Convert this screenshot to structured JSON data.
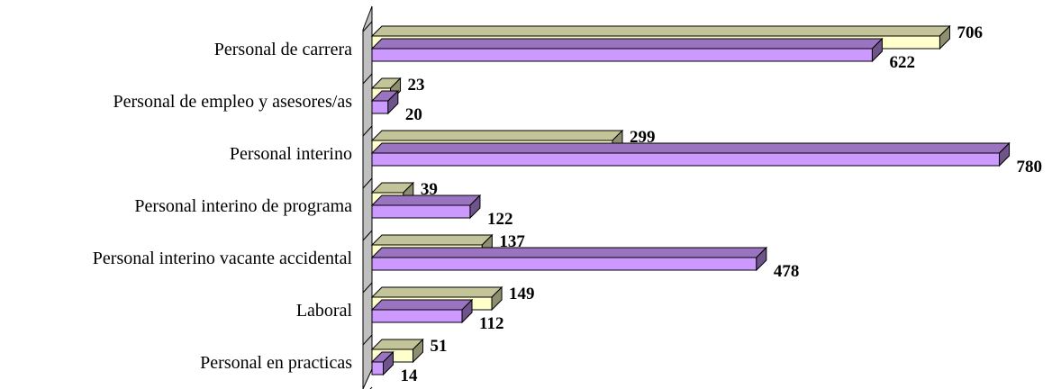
{
  "chart_data": {
    "type": "bar",
    "orientation": "horizontal",
    "style": "3d",
    "categories": [
      "Personal de carrera",
      "Personal de empleo y asesores/as",
      "Personal interino",
      "Personal interino de programa",
      "Personal interino vacante accidental",
      "Laboral",
      "Personal en practicas"
    ],
    "series": [
      {
        "values": [
          706,
          23,
          299,
          39,
          137,
          149,
          51
        ],
        "color": "#FFFFCC"
      },
      {
        "values": [
          622,
          20,
          780,
          122,
          478,
          112,
          14
        ],
        "color": "#CC99FF"
      }
    ],
    "xlim": [
      0,
      800
    ],
    "grid": false,
    "legend": "none",
    "title": "",
    "xlabel": "",
    "ylabel": ""
  }
}
